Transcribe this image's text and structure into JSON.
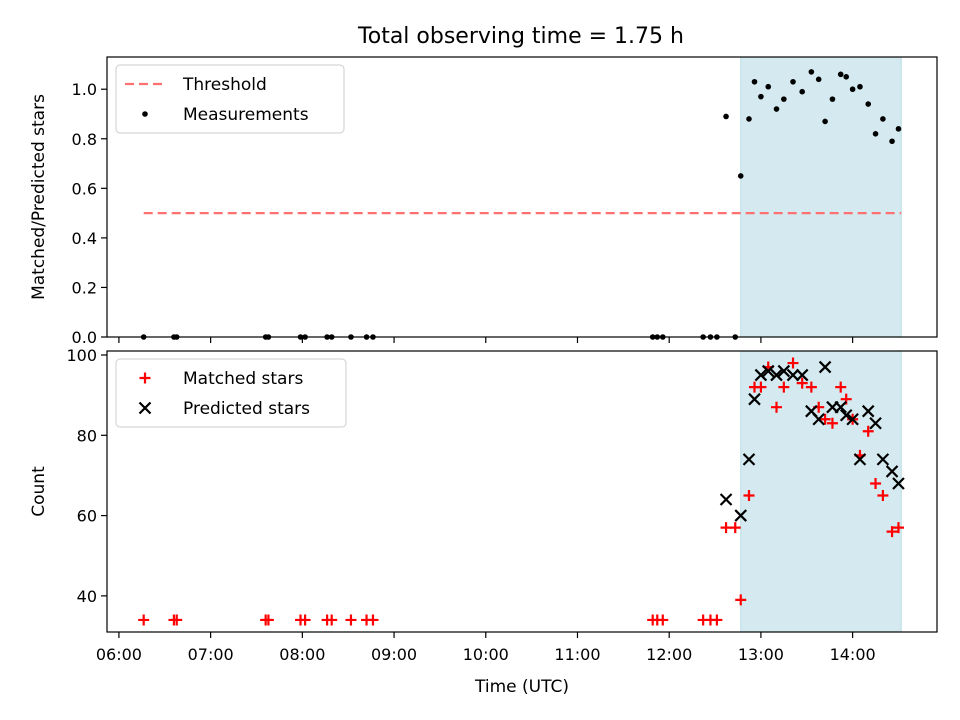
{
  "figure": {
    "title": "Total observing time = 1.75 h"
  },
  "chart_data": [
    {
      "type": "scatter",
      "panel": "top",
      "ylabel": "Matched/Predicted stars",
      "xlabel": "",
      "xlim": [
        5.87,
        14.92
      ],
      "ylim": [
        0,
        1.13
      ],
      "yticks": [
        0.0,
        0.2,
        0.4,
        0.6,
        0.8,
        1.0
      ],
      "ytick_labels": [
        "0.0",
        "0.2",
        "0.4",
        "0.6",
        "0.8",
        "1.0"
      ],
      "shaded_span": {
        "x": [
          12.78,
          14.53
        ],
        "color": "#d4eaf0"
      },
      "legend": {
        "position": "upper left",
        "entries": [
          "Threshold",
          "Measurements"
        ]
      },
      "series": [
        {
          "name": "Threshold",
          "style": "dashed-line",
          "color": "#ff7070",
          "x": [
            6.27,
            14.53
          ],
          "y": [
            0.5,
            0.5
          ]
        },
        {
          "name": "Measurements",
          "style": "dot",
          "color": "#000000",
          "x": [
            6.27,
            6.6,
            6.63,
            7.6,
            7.63,
            7.98,
            8.03,
            8.27,
            8.32,
            8.53,
            8.7,
            8.77,
            11.82,
            11.87,
            11.93,
            12.37,
            12.45,
            12.52,
            12.62,
            12.72,
            12.78,
            12.87,
            12.93,
            13.0,
            13.08,
            13.17,
            13.25,
            13.35,
            13.45,
            13.55,
            13.63,
            13.7,
            13.78,
            13.87,
            13.93,
            14.0,
            14.08,
            14.17,
            14.25,
            14.33,
            14.43,
            14.5
          ],
          "y": [
            0,
            0,
            0,
            0,
            0,
            0,
            0,
            0,
            0,
            0,
            0,
            0,
            0,
            0,
            0,
            0,
            0,
            0,
            0.89,
            0,
            0.65,
            0.88,
            1.03,
            0.97,
            1.01,
            0.92,
            0.96,
            1.03,
            0.99,
            1.07,
            1.04,
            0.87,
            0.96,
            1.06,
            1.05,
            1.0,
            1.01,
            0.94,
            0.82,
            0.88,
            0.79,
            0.84
          ]
        }
      ]
    },
    {
      "type": "scatter",
      "panel": "bottom",
      "ylabel": "Count",
      "xlabel": "Time (UTC)",
      "xlim": [
        5.87,
        14.92
      ],
      "ylim": [
        31,
        101
      ],
      "yticks": [
        40,
        60,
        80,
        100
      ],
      "ytick_labels": [
        "40",
        "60",
        "80",
        "100"
      ],
      "xticks": [
        6,
        7,
        8,
        9,
        10,
        11,
        12,
        13,
        14
      ],
      "xtick_labels": [
        "06:00",
        "07:00",
        "08:00",
        "09:00",
        "10:00",
        "11:00",
        "12:00",
        "13:00",
        "14:00"
      ],
      "shaded_span": {
        "x": [
          12.78,
          14.53
        ],
        "color": "#d4eaf0"
      },
      "legend": {
        "position": "upper left",
        "entries": [
          "Matched stars",
          "Predicted stars"
        ]
      },
      "series": [
        {
          "name": "Matched stars",
          "style": "plus",
          "color": "#ff0000",
          "x": [
            6.27,
            6.6,
            6.63,
            7.6,
            7.63,
            7.98,
            8.03,
            8.27,
            8.32,
            8.53,
            8.7,
            8.77,
            11.82,
            11.87,
            11.93,
            12.37,
            12.45,
            12.52,
            12.62,
            12.72,
            12.78,
            12.87,
            12.93,
            13.0,
            13.08,
            13.17,
            13.25,
            13.35,
            13.45,
            13.55,
            13.63,
            13.7,
            13.78,
            13.87,
            13.93,
            14.0,
            14.08,
            14.17,
            14.25,
            14.33,
            14.43,
            14.5
          ],
          "y": [
            34,
            34,
            34,
            34,
            34,
            34,
            34,
            34,
            34,
            34,
            34,
            34,
            34,
            34,
            34,
            34,
            34,
            34,
            57,
            57,
            39,
            65,
            92,
            92,
            97,
            87,
            92,
            98,
            93,
            92,
            87,
            84,
            83,
            92,
            89,
            84,
            75,
            81,
            68,
            65,
            56,
            57
          ]
        },
        {
          "name": "Predicted stars",
          "style": "x",
          "color": "#000000",
          "x": [
            12.62,
            12.78,
            12.87,
            12.93,
            13.0,
            13.08,
            13.17,
            13.25,
            13.35,
            13.45,
            13.55,
            13.63,
            13.7,
            13.78,
            13.87,
            13.93,
            14.0,
            14.08,
            14.17,
            14.25,
            14.33,
            14.43,
            14.5
          ],
          "y": [
            64,
            60,
            74,
            89,
            95,
            96,
            95,
            96,
            95,
            95,
            86,
            84,
            97,
            87,
            87,
            85,
            84,
            74,
            86,
            83,
            74,
            71,
            68
          ]
        }
      ]
    }
  ]
}
